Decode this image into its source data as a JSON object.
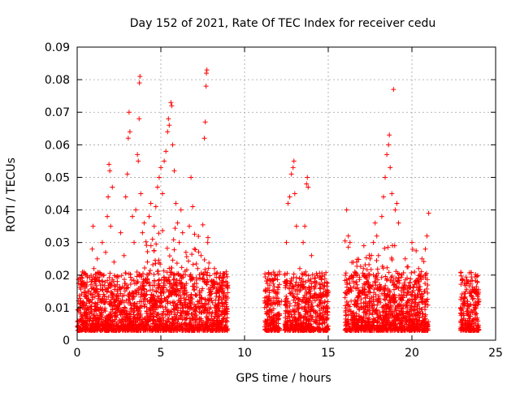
{
  "chart_data": {
    "type": "scatter",
    "title": "Day 152 of 2021, Rate Of TEC Index for receiver cedu",
    "xlabel": "GPS time / hours",
    "ylabel": "ROTI / TECUs",
    "xlim": [
      0,
      25
    ],
    "ylim": [
      0,
      0.09
    ],
    "xticks": [
      "0",
      "5",
      "10",
      "15",
      "20",
      "25"
    ],
    "yticks": [
      "0",
      "0.01",
      "0.02",
      "0.03",
      "0.04",
      "0.05",
      "0.06",
      "0.07",
      "0.08",
      "0.09"
    ],
    "grid": true,
    "legend": "none",
    "marker": "+",
    "color": "#ff0000",
    "data_gaps_hours": [
      [
        9.1,
        11.2
      ],
      [
        15.1,
        16.0
      ],
      [
        21.1,
        22.8
      ]
    ],
    "series": [
      {
        "points": [
          [
            0.05,
            0.004
          ],
          [
            0.1,
            0.009
          ],
          [
            0.15,
            0.006
          ],
          [
            0.2,
            0.011
          ],
          [
            0.3,
            0.005
          ],
          [
            0.5,
            0.008
          ],
          [
            0.7,
            0.012
          ],
          [
            0.85,
            0.018
          ],
          [
            0.9,
            0.028
          ],
          [
            0.95,
            0.035
          ],
          [
            1.0,
            0.022
          ],
          [
            1.1,
            0.015
          ],
          [
            1.2,
            0.025
          ],
          [
            1.4,
            0.012
          ],
          [
            1.5,
            0.03
          ],
          [
            1.6,
            0.02
          ],
          [
            1.7,
            0.027
          ],
          [
            1.8,
            0.038
          ],
          [
            1.85,
            0.044
          ],
          [
            1.9,
            0.054
          ],
          [
            1.95,
            0.052
          ],
          [
            2.0,
            0.035
          ],
          [
            2.1,
            0.047
          ],
          [
            2.2,
            0.024
          ],
          [
            2.4,
            0.018
          ],
          [
            2.6,
            0.033
          ],
          [
            2.8,
            0.026
          ],
          [
            2.9,
            0.044
          ],
          [
            3.0,
            0.051
          ],
          [
            3.05,
            0.062
          ],
          [
            3.1,
            0.07
          ],
          [
            3.15,
            0.064
          ],
          [
            3.3,
            0.038
          ],
          [
            3.4,
            0.03
          ],
          [
            3.5,
            0.04
          ],
          [
            3.6,
            0.057
          ],
          [
            3.65,
            0.055
          ],
          [
            3.7,
            0.068
          ],
          [
            3.72,
            0.079
          ],
          [
            3.75,
            0.081
          ],
          [
            3.8,
            0.045
          ],
          [
            3.9,
            0.033
          ],
          [
            4.0,
            0.036
          ],
          [
            4.2,
            0.024
          ],
          [
            4.3,
            0.038
          ],
          [
            4.4,
            0.042
          ],
          [
            4.5,
            0.031
          ],
          [
            4.6,
            0.035
          ],
          [
            4.7,
            0.041
          ],
          [
            4.8,
            0.047
          ],
          [
            4.9,
            0.05
          ],
          [
            5.0,
            0.053
          ],
          [
            5.1,
            0.045
          ],
          [
            5.2,
            0.055
          ],
          [
            5.3,
            0.058
          ],
          [
            5.4,
            0.064
          ],
          [
            5.45,
            0.068
          ],
          [
            5.5,
            0.066
          ],
          [
            5.6,
            0.073
          ],
          [
            5.65,
            0.072
          ],
          [
            5.7,
            0.06
          ],
          [
            5.8,
            0.052
          ],
          [
            5.9,
            0.042
          ],
          [
            6.0,
            0.036
          ],
          [
            6.1,
            0.03
          ],
          [
            6.2,
            0.04
          ],
          [
            6.3,
            0.033
          ],
          [
            6.5,
            0.027
          ],
          [
            6.7,
            0.035
          ],
          [
            6.8,
            0.05
          ],
          [
            6.9,
            0.041
          ],
          [
            7.0,
            0.028
          ],
          [
            7.2,
            0.022
          ],
          [
            7.4,
            0.026
          ],
          [
            7.6,
            0.062
          ],
          [
            7.65,
            0.067
          ],
          [
            7.7,
            0.078
          ],
          [
            7.72,
            0.082
          ],
          [
            7.75,
            0.083
          ],
          [
            7.8,
            0.03
          ],
          [
            8.0,
            0.018
          ],
          [
            8.2,
            0.022
          ],
          [
            8.5,
            0.015
          ],
          [
            8.7,
            0.019
          ],
          [
            8.9,
            0.021
          ],
          [
            9.0,
            0.016
          ],
          [
            11.2,
            0.01
          ],
          [
            11.4,
            0.016
          ],
          [
            11.6,
            0.012
          ],
          [
            11.8,
            0.015
          ],
          [
            12.0,
            0.008
          ],
          [
            12.2,
            0.012
          ],
          [
            12.4,
            0.018
          ],
          [
            12.5,
            0.03
          ],
          [
            12.6,
            0.042
          ],
          [
            12.7,
            0.044
          ],
          [
            12.8,
            0.051
          ],
          [
            12.9,
            0.053
          ],
          [
            12.95,
            0.055
          ],
          [
            13.0,
            0.045
          ],
          [
            13.1,
            0.035
          ],
          [
            13.3,
            0.022
          ],
          [
            13.5,
            0.03
          ],
          [
            13.6,
            0.035
          ],
          [
            13.7,
            0.048
          ],
          [
            13.75,
            0.05
          ],
          [
            13.8,
            0.047
          ],
          [
            14.0,
            0.026
          ],
          [
            14.2,
            0.018
          ],
          [
            14.5,
            0.014
          ],
          [
            14.8,
            0.012
          ],
          [
            15.0,
            0.015
          ],
          [
            16.1,
            0.04
          ],
          [
            16.2,
            0.032
          ],
          [
            16.3,
            0.03
          ],
          [
            16.5,
            0.018
          ],
          [
            16.7,
            0.024
          ],
          [
            16.9,
            0.015
          ],
          [
            17.1,
            0.022
          ],
          [
            17.3,
            0.018
          ],
          [
            17.5,
            0.025
          ],
          [
            17.7,
            0.03
          ],
          [
            17.8,
            0.036
          ],
          [
            17.9,
            0.032
          ],
          [
            18.0,
            0.026
          ],
          [
            18.2,
            0.038
          ],
          [
            18.3,
            0.044
          ],
          [
            18.4,
            0.05
          ],
          [
            18.5,
            0.057
          ],
          [
            18.6,
            0.06
          ],
          [
            18.65,
            0.063
          ],
          [
            18.7,
            0.053
          ],
          [
            18.8,
            0.045
          ],
          [
            18.9,
            0.077
          ],
          [
            19.0,
            0.04
          ],
          [
            19.1,
            0.042
          ],
          [
            19.2,
            0.036
          ],
          [
            19.4,
            0.02
          ],
          [
            19.6,
            0.025
          ],
          [
            19.8,
            0.015
          ],
          [
            20.0,
            0.03
          ],
          [
            20.2,
            0.018
          ],
          [
            20.4,
            0.022
          ],
          [
            20.6,
            0.025
          ],
          [
            20.8,
            0.028
          ],
          [
            20.9,
            0.032
          ],
          [
            21.0,
            0.039
          ],
          [
            22.9,
            0.01
          ],
          [
            23.1,
            0.012
          ],
          [
            23.3,
            0.008
          ],
          [
            23.5,
            0.011
          ],
          [
            23.7,
            0.009
          ],
          [
            23.85,
            0.015
          ],
          [
            23.9,
            0.018
          ],
          [
            24.0,
            0.012
          ]
        ]
      }
    ]
  }
}
